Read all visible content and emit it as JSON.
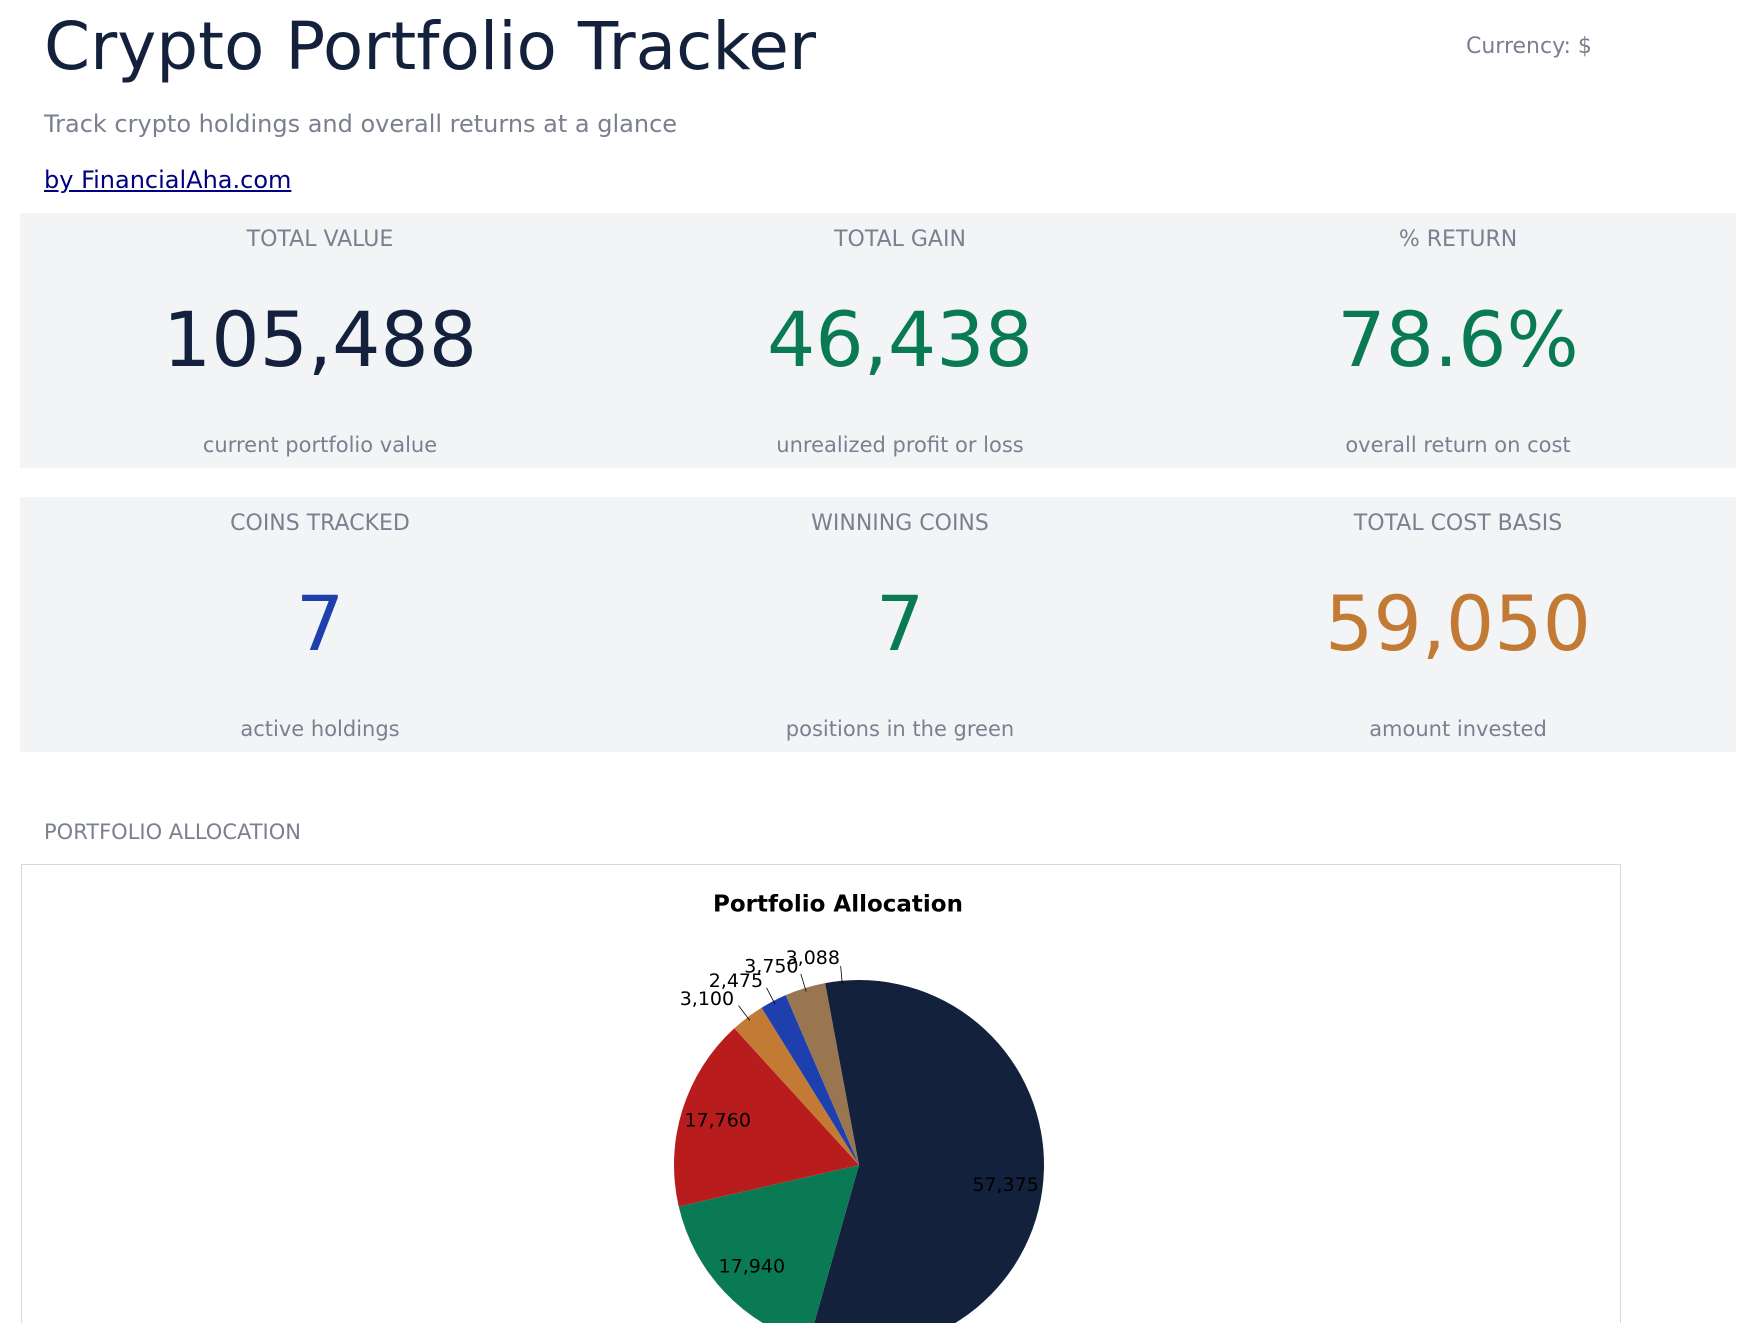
{
  "header": {
    "title": "Crypto Portfolio Tracker",
    "currency": "Currency: $",
    "subtitle": "Track crypto holdings and overall returns at a glance",
    "link": "by FinancialAha.com"
  },
  "kpis": [
    [
      {
        "label": "TOTAL VALUE",
        "value": "105,488",
        "note": "current portfolio value",
        "color": "#14213d"
      },
      {
        "label": "TOTAL GAIN",
        "value": "46,438",
        "note": "unrealized profit or loss",
        "color": "#0a7a55"
      },
      {
        "label": "% RETURN",
        "value": "78.6%",
        "note": "overall return on cost",
        "color": "#0a7a55"
      }
    ],
    [
      {
        "label": "COINS TRACKED",
        "value": "7",
        "note": "active holdings",
        "color": "#1e40af"
      },
      {
        "label": "WINNING COINS",
        "value": "7",
        "note": "positions in the green",
        "color": "#0a7a55"
      },
      {
        "label": "TOTAL COST BASIS",
        "value": "59,050",
        "note": "amount invested",
        "color": "#c27a35"
      }
    ]
  ],
  "section_title": "PORTFOLIO ALLOCATION",
  "chart_data": {
    "type": "pie",
    "title": "Portfolio Allocation",
    "values": [
      57375,
      17940,
      17760,
      3100,
      2475,
      3750,
      3088
    ],
    "value_labels": [
      "57,375",
      "17,940",
      "17,760",
      "3,100",
      "2,475",
      "3,750",
      "3,088"
    ],
    "colors": [
      "#14213d",
      "#0a7a55",
      "#b91c1c",
      "#c27a35",
      "#1e40af",
      "#9a7650",
      "#14213d"
    ],
    "start_angle": 0,
    "direction": "clockwise"
  }
}
